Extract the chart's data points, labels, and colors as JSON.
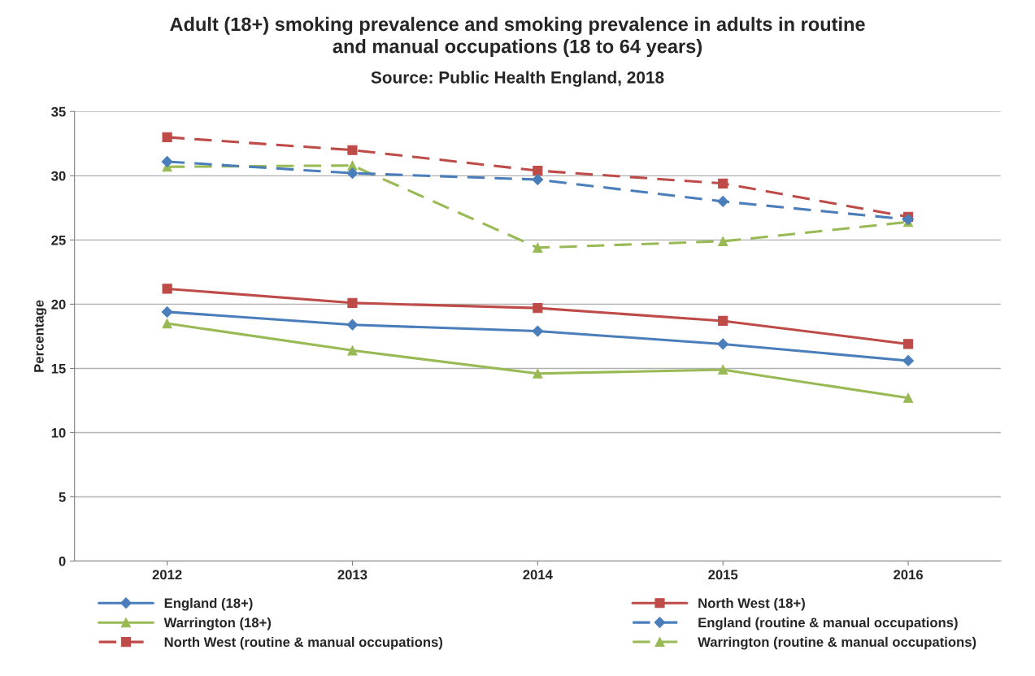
{
  "chart_data": {
    "type": "line",
    "title": "Adult (18+) smoking prevalence and smoking prevalence in adults in routine\nand manual occupations (18 to 64 years)",
    "subtitle": "Source: Public Health England, 2018",
    "ylabel": "Percentage",
    "categories": [
      "2012",
      "2013",
      "2014",
      "2015",
      "2016"
    ],
    "series": [
      {
        "name": "England (18+)",
        "color": "#4a7ebb",
        "marker": "diamond",
        "line_style": "solid",
        "values": [
          19.4,
          18.4,
          17.9,
          16.9,
          15.6
        ]
      },
      {
        "name": "North West (18+)",
        "color": "#be4b48",
        "marker": "square",
        "line_style": "solid",
        "values": [
          21.2,
          20.1,
          19.7,
          18.7,
          16.9
        ]
      },
      {
        "name": "Warrington (18+)",
        "color": "#98b954",
        "marker": "triangle",
        "line_style": "solid",
        "values": [
          18.5,
          16.4,
          14.6,
          14.9,
          12.7
        ]
      },
      {
        "name": "England (routine & manual occupations)",
        "color": "#4a7ebb",
        "marker": "diamond",
        "line_style": "dashed",
        "values": [
          31.1,
          30.2,
          29.7,
          28.0,
          26.6
        ]
      },
      {
        "name": "North West (routine & manual occupations)",
        "color": "#be4b48",
        "marker": "square",
        "line_style": "dashed",
        "values": [
          33.0,
          32.0,
          30.4,
          29.4,
          26.8
        ]
      },
      {
        "name": "Warrington (routine & manual occupations)",
        "color": "#98b954",
        "marker": "triangle",
        "line_style": "dashed",
        "values": [
          30.7,
          30.8,
          24.4,
          24.9,
          26.4
        ]
      }
    ],
    "ylim": [
      0,
      35
    ],
    "yticks": [
      0,
      5,
      10,
      15,
      20,
      25,
      30,
      35
    ],
    "grid": "y",
    "legend": "bottom"
  }
}
